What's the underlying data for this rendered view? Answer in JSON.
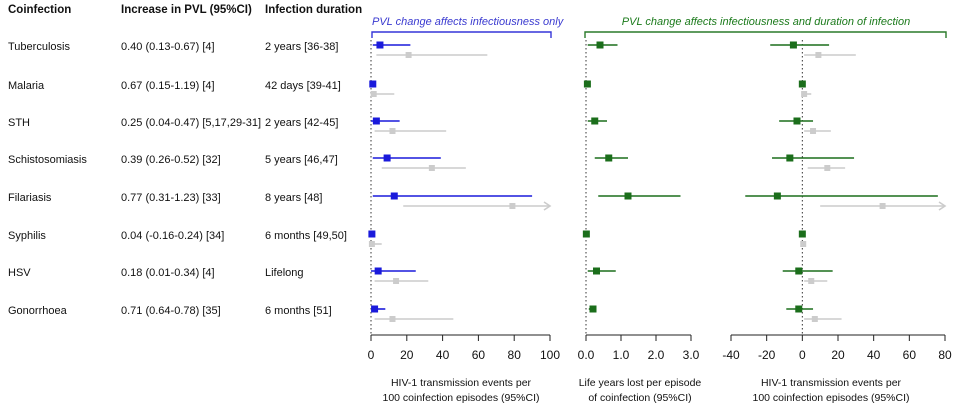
{
  "table": {
    "headers": {
      "coinfection": "Coinfection",
      "increase": "Increase in PVL (95%CI)",
      "duration": "Infection duration"
    },
    "rows": [
      {
        "name": "Tuberculosis",
        "pvl": "0.40 (0.13-0.67) [4]",
        "duration": "2 years [36-38]"
      },
      {
        "name": "Malaria",
        "pvl": "0.67 (0.15-1.19) [4]",
        "duration": "42 days [39-41]"
      },
      {
        "name": "STH",
        "pvl": "0.25 (0.04-0.47) [5,17,29-31]",
        "duration": "2 years [42-45]"
      },
      {
        "name": "Schistosomiasis",
        "pvl": "0.39 (0.26-0.52) [32]",
        "duration": "5 years [46,47]"
      },
      {
        "name": "Filariasis",
        "pvl": "0.77 (0.31-1.23) [33]",
        "duration": "8 years [48]"
      },
      {
        "name": "Syphilis",
        "pvl": "0.04 (-0.16-0.24) [34]",
        "duration": "6 months [49,50]"
      },
      {
        "name": "HSV",
        "pvl": "0.18 (0.01-0.34) [4]",
        "duration": "Lifelong"
      },
      {
        "name": "Gonorrhoea",
        "pvl": "0.71 (0.64-0.78) [35]",
        "duration": "6 months [51]"
      }
    ]
  },
  "groups": {
    "infectiousness_only": "PVL change affects infectiousness only",
    "infectiousness_and_duration": "PVL change affects infectiousness and duration of infection"
  },
  "colors": {
    "panel1": "#1a1adb",
    "panel23": "#1b6e1b",
    "grey": "#cccccc",
    "axis": "#222222"
  },
  "chart_data": [
    {
      "type": "forest",
      "xlabel": "HIV-1 transmission events per\n100 coinfection episodes (95%CI)",
      "xlim": [
        0,
        100
      ],
      "ticks": [
        0,
        20,
        40,
        60,
        80,
        100
      ],
      "tick_labels": [
        "0",
        "20",
        "40",
        "60",
        "80",
        "100"
      ],
      "series": [
        {
          "role": "primary",
          "points": [
            {
              "est": 5,
              "lo": 1,
              "hi": 22
            },
            {
              "est": 1,
              "lo": 0,
              "hi": 2
            },
            {
              "est": 3,
              "lo": 0,
              "hi": 16
            },
            {
              "est": 9,
              "lo": 1,
              "hi": 39
            },
            {
              "est": 13,
              "lo": 1,
              "hi": 90
            },
            {
              "est": 0.5,
              "lo": 0,
              "hi": 1
            },
            {
              "est": 4,
              "lo": 0,
              "hi": 25
            },
            {
              "est": 2,
              "lo": 0,
              "hi": 8
            }
          ]
        },
        {
          "role": "secondary",
          "points": [
            {
              "est": 21,
              "lo": 3,
              "hi": 65
            },
            {
              "est": 1.5,
              "lo": 0,
              "hi": 13
            },
            {
              "est": 12,
              "lo": 2,
              "hi": 42
            },
            {
              "est": 34,
              "lo": 6,
              "hi": 53
            },
            {
              "est": 79,
              "lo": 18,
              "hi": 100,
              "arrow": true
            },
            {
              "est": 0.5,
              "lo": 0,
              "hi": 6
            },
            {
              "est": 14,
              "lo": 2,
              "hi": 32
            },
            {
              "est": 12,
              "lo": 2,
              "hi": 46
            }
          ]
        }
      ]
    },
    {
      "type": "forest",
      "xlabel": "Life years lost per episode\nof coinfection (95%CI)",
      "xlim": [
        0,
        3
      ],
      "ticks": [
        0,
        1,
        2,
        3
      ],
      "tick_labels": [
        "0.0",
        "1.0",
        "2.0",
        "3.0"
      ],
      "series": [
        {
          "role": "primary",
          "points": [
            {
              "est": 0.4,
              "lo": 0.05,
              "hi": 0.9
            },
            {
              "est": 0.04,
              "lo": 0.01,
              "hi": 0.08
            },
            {
              "est": 0.25,
              "lo": 0.05,
              "hi": 0.6
            },
            {
              "est": 0.65,
              "lo": 0.25,
              "hi": 1.2
            },
            {
              "est": 1.2,
              "lo": 0.35,
              "hi": 2.7
            },
            {
              "est": 0.01,
              "lo": 0,
              "hi": 0.03
            },
            {
              "est": 0.3,
              "lo": 0.05,
              "hi": 0.85
            },
            {
              "est": 0.2,
              "lo": 0.08,
              "hi": 0.3
            }
          ]
        }
      ]
    },
    {
      "type": "forest",
      "xlabel": "HIV-1 transmission events per\n100 coinfection episodes (95%CI)",
      "xlim": [
        -40,
        80
      ],
      "ticks": [
        -40,
        -20,
        0,
        20,
        40,
        60,
        80
      ],
      "tick_labels": [
        "-40",
        "-20",
        "0",
        "20",
        "40",
        "60",
        "80"
      ],
      "series": [
        {
          "role": "primary",
          "points": [
            {
              "est": -5,
              "lo": -18,
              "hi": 15
            },
            {
              "est": 0,
              "lo": -1,
              "hi": 1
            },
            {
              "est": -3,
              "lo": -13,
              "hi": 6
            },
            {
              "est": -7,
              "lo": -17,
              "hi": 29
            },
            {
              "est": -14,
              "lo": -32,
              "hi": 76
            },
            {
              "est": 0,
              "lo": -1,
              "hi": 1
            },
            {
              "est": -2,
              "lo": -11,
              "hi": 17
            },
            {
              "est": -2,
              "lo": -9,
              "hi": 6
            }
          ]
        },
        {
          "role": "secondary",
          "points": [
            {
              "est": 9,
              "lo": 1,
              "hi": 30
            },
            {
              "est": 1,
              "lo": 0,
              "hi": 5
            },
            {
              "est": 6,
              "lo": 1,
              "hi": 16
            },
            {
              "est": 14,
              "lo": 3,
              "hi": 24
            },
            {
              "est": 45,
              "lo": 10,
              "hi": 80,
              "arrow": true
            },
            {
              "est": 0.5,
              "lo": 0,
              "hi": 1
            },
            {
              "est": 5,
              "lo": 1,
              "hi": 14
            },
            {
              "est": 7,
              "lo": 1,
              "hi": 22
            }
          ]
        }
      ]
    }
  ]
}
